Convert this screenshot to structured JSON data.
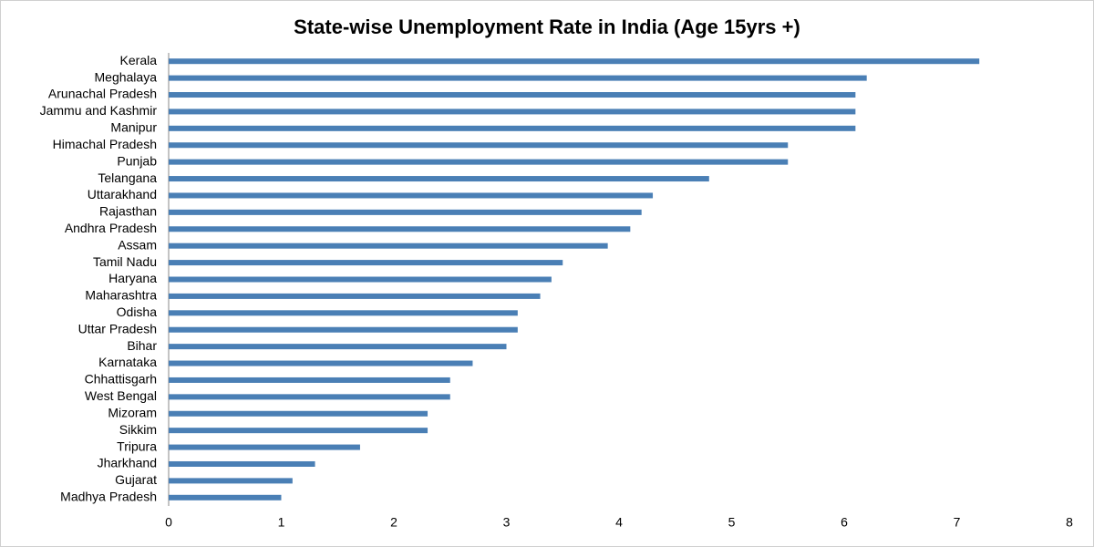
{
  "chart_data": {
    "type": "bar",
    "orientation": "horizontal",
    "title": "State-wise Unemployment Rate in India (Age 15yrs +)",
    "categories": [
      "Kerala",
      "Meghalaya",
      "Arunachal Pradesh",
      "Jammu and Kashmir",
      "Manipur",
      "Himachal Pradesh",
      "Punjab",
      "Telangana",
      "Uttarakhand",
      "Rajasthan",
      "Andhra Pradesh",
      "Assam",
      "Tamil Nadu",
      "Haryana",
      "Maharashtra",
      "Odisha",
      "Uttar Pradesh",
      "Bihar",
      "Karnataka",
      "Chhattisgarh",
      "West Bengal",
      "Mizoram",
      "Sikkim",
      "Tripura",
      "Jharkhand",
      "Gujarat",
      "Madhya Pradesh"
    ],
    "values": [
      7.2,
      6.2,
      6.1,
      6.1,
      6.1,
      5.5,
      5.5,
      4.8,
      4.3,
      4.2,
      4.1,
      3.9,
      3.5,
      3.4,
      3.3,
      3.1,
      3.1,
      3.0,
      2.7,
      2.5,
      2.5,
      2.3,
      2.3,
      1.7,
      1.3,
      1.1,
      1.0
    ],
    "color": "#4a7fb5",
    "xlim": [
      0,
      8
    ],
    "xticks": [
      0,
      1,
      2,
      3,
      4,
      5,
      6,
      7,
      8
    ],
    "grid": false
  }
}
